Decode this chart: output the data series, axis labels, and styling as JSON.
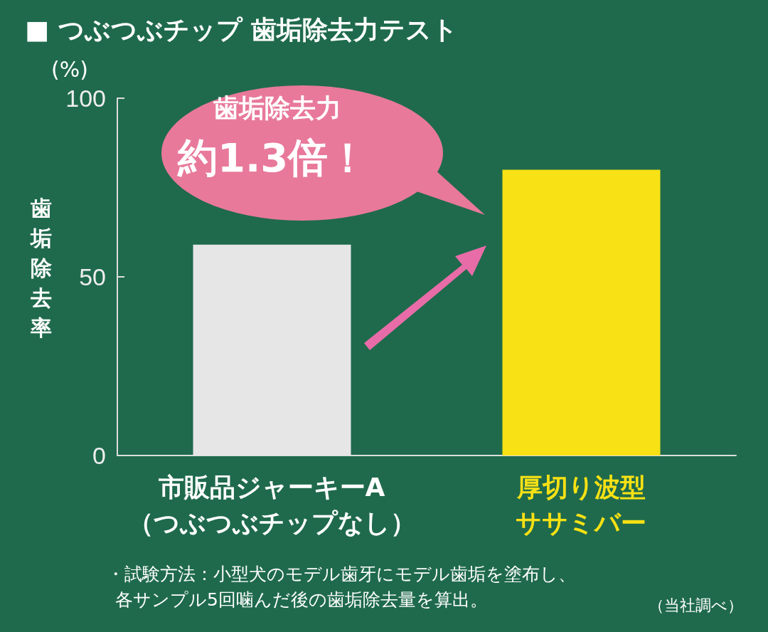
{
  "chart_data": {
    "type": "bar",
    "title": "■ つぶつぶチップ 歯垢除去力テスト",
    "ylabel": "歯垢除去率",
    "categories": [
      "市販品ジャーキーA（つぶつぶチップなし）",
      "厚切り波型ササミバー"
    ],
    "values": [
      59,
      80
    ],
    "colors": [
      "#e6e6e6",
      "#f8e114"
    ],
    "ylim": [
      0,
      100
    ],
    "yticks": [
      0,
      50,
      100
    ],
    "grid": false,
    "annotations": [
      "(%)",
      "歯垢除去力",
      "約1.3倍！",
      "・試験方法：小型犬のモデル歯牙にモデル歯垢を塗布し、",
      "各サンプル5回噛んだ後の歯垢除去量を算出。",
      "（当社調べ）"
    ]
  }
}
